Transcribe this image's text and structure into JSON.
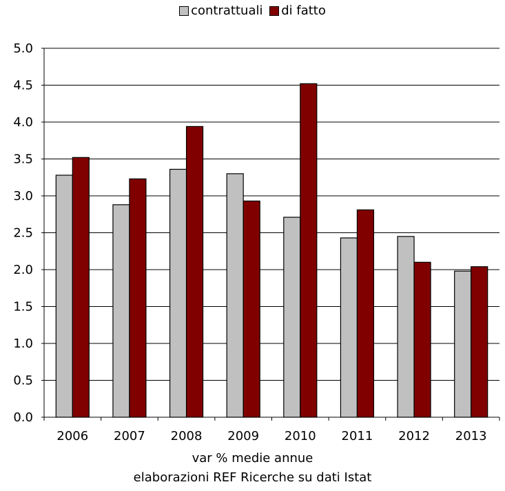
{
  "chart_data": {
    "type": "bar",
    "categories": [
      "2006",
      "2007",
      "2008",
      "2009",
      "2010",
      "2011",
      "2012",
      "2013"
    ],
    "series": [
      {
        "name": "contrattuali",
        "color": "#c0c0c0",
        "values": [
          3.28,
          2.88,
          3.36,
          3.3,
          2.71,
          2.43,
          2.45,
          1.98
        ]
      },
      {
        "name": "di fatto",
        "color": "#800000",
        "values": [
          3.52,
          3.23,
          3.94,
          2.93,
          4.52,
          2.81,
          2.1,
          2.04
        ]
      }
    ],
    "ylim": [
      0,
      5.0
    ],
    "yticks": [
      "0.0",
      "0.5",
      "1.0",
      "1.5",
      "2.0",
      "2.5",
      "3.0",
      "3.5",
      "4.0",
      "4.5",
      "5.0"
    ],
    "grid": true,
    "legend": "top-center"
  },
  "captions": {
    "line1": "var % medie annue",
    "line2": "elaborazioni REF Ricerche su dati Istat"
  }
}
